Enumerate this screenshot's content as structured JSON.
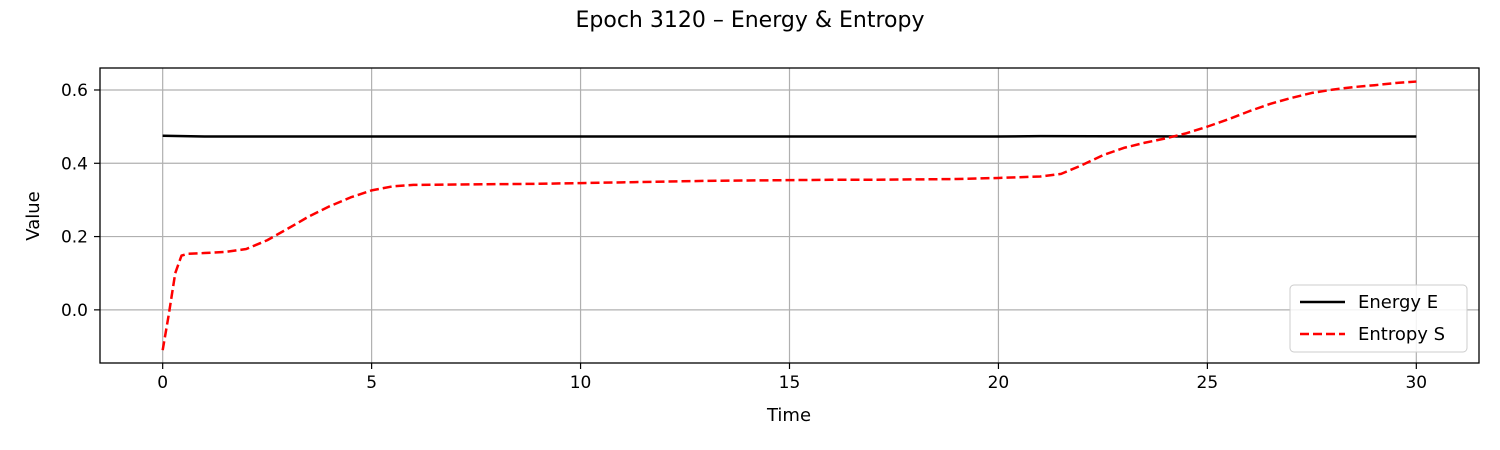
{
  "chart_data": {
    "type": "line",
    "title": "Epoch 3120 – Energy & Entropy",
    "xlabel": "Time",
    "ylabel": "Value",
    "xlim": [
      -1.5,
      31.5
    ],
    "ylim": [
      -0.145,
      0.66
    ],
    "xticks": [
      0,
      5,
      10,
      15,
      20,
      25,
      30
    ],
    "yticks": [
      0.0,
      0.2,
      0.4,
      0.6
    ],
    "ytick_labels": [
      "0.0",
      "0.2",
      "0.4",
      "0.6"
    ],
    "grid": true,
    "legend_position": "lower-right",
    "series": [
      {
        "name": "Energy E",
        "color": "#000000",
        "style": "solid",
        "x": [
          0,
          0.5,
          1,
          5,
          10,
          15,
          20,
          21,
          25,
          30
        ],
        "y": [
          0.475,
          0.474,
          0.473,
          0.473,
          0.473,
          0.473,
          0.473,
          0.474,
          0.473,
          0.473
        ]
      },
      {
        "name": "Entropy S",
        "color": "#ff0000",
        "style": "dashed",
        "x": [
          0,
          0.15,
          0.3,
          0.45,
          0.6,
          1,
          1.5,
          2,
          2.5,
          3,
          3.5,
          4,
          4.5,
          5,
          5.5,
          6,
          7,
          8,
          9,
          10,
          11,
          12,
          13,
          14,
          15,
          16,
          17,
          18,
          19,
          20,
          20.5,
          21,
          21.5,
          22,
          22.5,
          23,
          23.5,
          24,
          24.5,
          25,
          25.5,
          26,
          26.5,
          27,
          27.5,
          28,
          28.5,
          29,
          29.5,
          30
        ],
        "y": [
          -0.11,
          -0.01,
          0.1,
          0.148,
          0.153,
          0.155,
          0.158,
          0.166,
          0.19,
          0.222,
          0.255,
          0.283,
          0.307,
          0.326,
          0.337,
          0.341,
          0.342,
          0.343,
          0.344,
          0.346,
          0.348,
          0.35,
          0.352,
          0.353,
          0.354,
          0.355,
          0.355,
          0.356,
          0.357,
          0.36,
          0.362,
          0.364,
          0.371,
          0.395,
          0.422,
          0.442,
          0.456,
          0.468,
          0.482,
          0.5,
          0.52,
          0.542,
          0.562,
          0.578,
          0.592,
          0.601,
          0.608,
          0.613,
          0.619,
          0.623
        ]
      }
    ]
  }
}
